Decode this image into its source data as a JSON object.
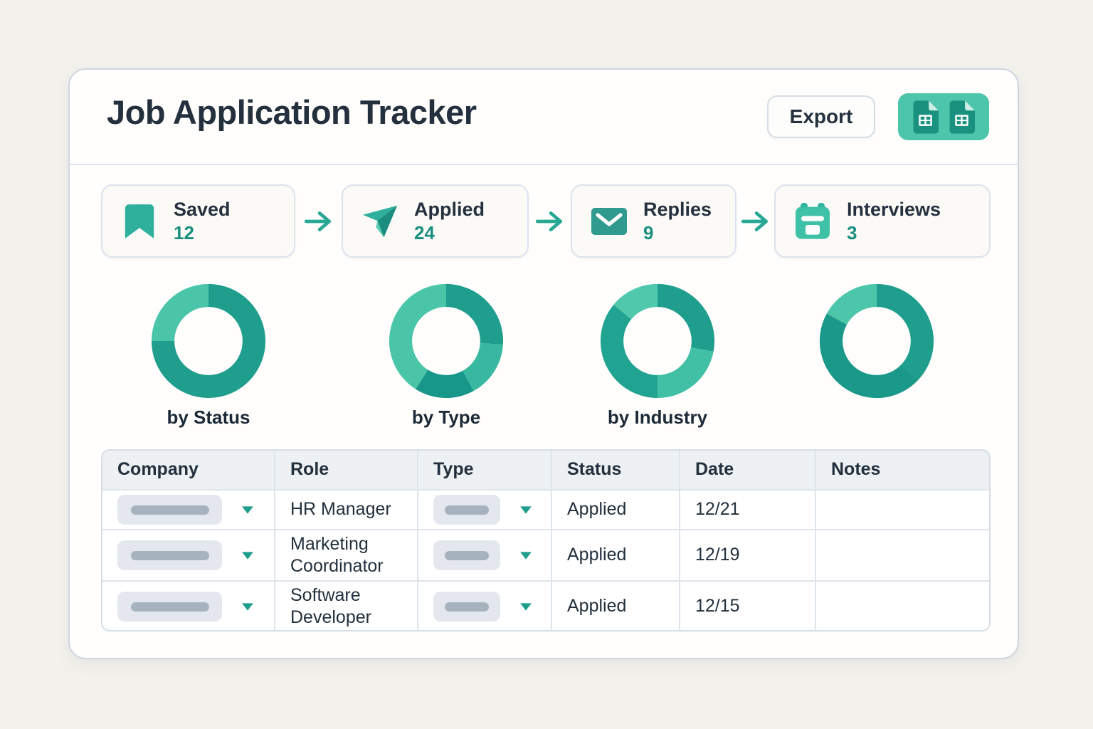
{
  "page": {
    "title": "Job Application Tracker"
  },
  "header": {
    "export_label": "Export",
    "icons": [
      "spreadsheet-icon",
      "spreadsheet-icon"
    ]
  },
  "colors": {
    "accent_teal": "#1f9e8e",
    "accent_teal_light": "#4cc6aa",
    "count_text": "#1a8f7f",
    "title_text": "#24303e",
    "card_border": "#dce3ed",
    "table_border": "#d5dde6",
    "header_row_bg": "#edf1f4",
    "page_bg": "#f3f1ec"
  },
  "pipeline": {
    "stages": [
      {
        "label": "Saved",
        "count": "12",
        "icon": "bookmark-icon"
      },
      {
        "label": "Applied",
        "count": "24",
        "icon": "paper-plane-icon"
      },
      {
        "label": "Replies",
        "count": "9",
        "icon": "envelope-icon"
      },
      {
        "label": "Interviews",
        "count": "3",
        "icon": "calendar-icon"
      }
    ],
    "arrow_icon": "arrow-right-icon"
  },
  "chart_data": [
    {
      "type": "pie",
      "donut": true,
      "title": "by Status",
      "start_angle_deg_from_12_clockwise": 0,
      "segments": [
        {
          "value": 75,
          "color": "#1f9e8e"
        },
        {
          "value": 25,
          "color": "#4ac5a8"
        }
      ],
      "values_are": "percent, estimated from arc angles; no numeric labels shown"
    },
    {
      "type": "pie",
      "donut": true,
      "title": "by Type",
      "start_angle_deg_from_12_clockwise": 0,
      "segments": [
        {
          "value": 26,
          "color": "#1f9e8e"
        },
        {
          "value": 16,
          "color": "#38b8a0"
        },
        {
          "value": 17,
          "color": "#17978a"
        },
        {
          "value": 41,
          "color": "#4ac5a8"
        }
      ],
      "values_are": "percent, estimated from arc angles; no numeric labels shown"
    },
    {
      "type": "pie",
      "donut": true,
      "title": "by Industry",
      "start_angle_deg_from_12_clockwise": 0,
      "segments": [
        {
          "value": 28,
          "color": "#1f9e8e"
        },
        {
          "value": 22,
          "color": "#41c0a5"
        },
        {
          "value": 36,
          "color": "#21a392"
        },
        {
          "value": 14,
          "color": "#4fc8ac"
        }
      ],
      "values_are": "percent, estimated from arc angles; no numeric labels shown"
    },
    {
      "type": "pie",
      "donut": true,
      "title": "",
      "start_angle_deg_from_12_clockwise": 0,
      "segments": [
        {
          "value": 37,
          "color": "#1f9e8e"
        },
        {
          "value": 46,
          "color": "#1a998b"
        },
        {
          "value": 17,
          "color": "#4cc6aa"
        }
      ],
      "values_are": "percent, estimated from arc angles; no numeric labels shown"
    }
  ],
  "table": {
    "columns": [
      "Company",
      "Role",
      "Type",
      "Status",
      "Date",
      "Notes"
    ],
    "rows": [
      {
        "company": "",
        "role": "HR Manager",
        "type": "",
        "status": "Applied",
        "date": "12/21",
        "notes": ""
      },
      {
        "company": "",
        "role": "Marketing Coordinator",
        "type": "",
        "status": "Applied",
        "date": "12/19",
        "notes": ""
      },
      {
        "company": "",
        "role": "Software Developer",
        "type": "",
        "status": "Applied",
        "date": "12/15",
        "notes": ""
      }
    ],
    "placeholder_cells": "Company and Type cells show blank dropdown pills (redacted values)"
  }
}
